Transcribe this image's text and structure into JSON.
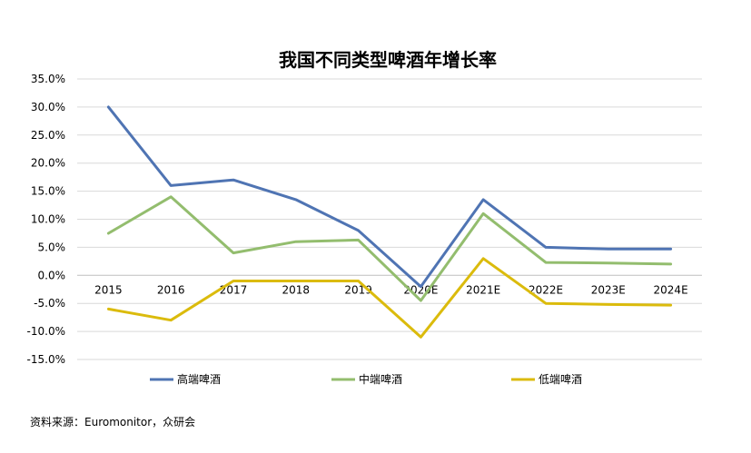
{
  "chart_data": {
    "type": "line",
    "title": "我国不同类型啤酒年增长率",
    "categories": [
      "2015",
      "2016",
      "2017",
      "2018",
      "2019",
      "2020E",
      "2021E",
      "2022E",
      "2023E",
      "2024E"
    ],
    "y_ticks": [
      "35.0%",
      "30.0%",
      "25.0%",
      "20.0%",
      "15.0%",
      "10.0%",
      "5.0%",
      "0.0%",
      "-5.0%",
      "-10.0%",
      "-15.0%"
    ],
    "ylim": [
      -15,
      35
    ],
    "y_unit": "%",
    "grid": true,
    "legend_position": "bottom",
    "series": [
      {
        "name": "高端啤酒",
        "color": "#4f74b3",
        "values": [
          30.0,
          16.0,
          17.0,
          13.5,
          8.0,
          -2.0,
          13.5,
          5.0,
          4.7,
          4.7
        ]
      },
      {
        "name": "中端啤酒",
        "color": "#93bd6e",
        "values": [
          7.5,
          14.0,
          4.0,
          6.0,
          6.3,
          -4.5,
          11.0,
          2.3,
          2.2,
          2.0
        ]
      },
      {
        "name": "低端啤酒",
        "color": "#dbbb0c",
        "values": [
          -6.0,
          -8.0,
          -1.0,
          -1.0,
          -1.0,
          -11.0,
          3.0,
          -5.0,
          -5.2,
          -5.3
        ]
      }
    ]
  },
  "source": "资料来源：Euromonitor，众研会"
}
